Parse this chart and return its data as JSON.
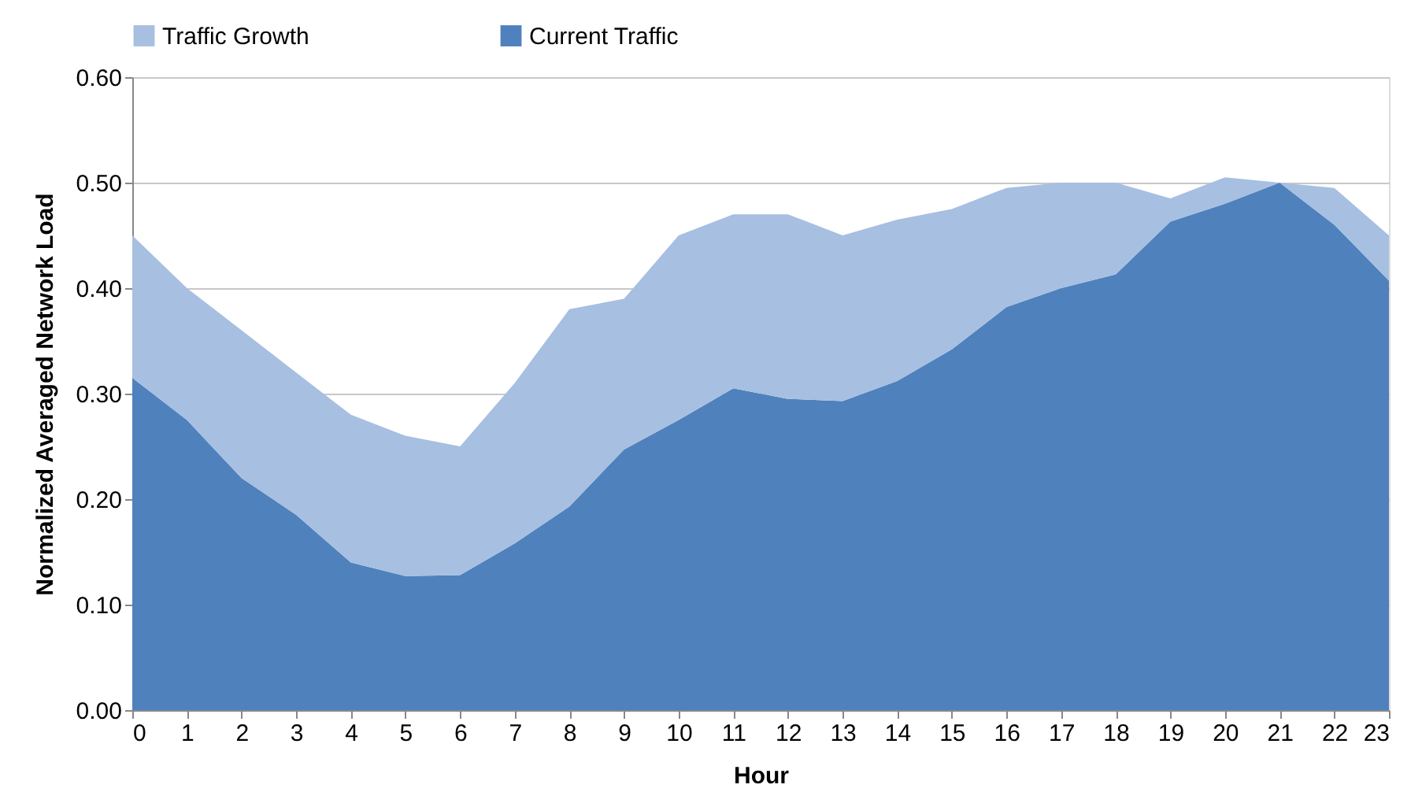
{
  "chart_data": {
    "type": "area",
    "stacked": true,
    "xlabel": "Hour",
    "ylabel": "Normalized Averaged Network Load",
    "x": [
      0,
      1,
      2,
      3,
      4,
      5,
      6,
      7,
      8,
      9,
      10,
      11,
      12,
      13,
      14,
      15,
      16,
      17,
      18,
      19,
      20,
      21,
      22,
      23
    ],
    "series": [
      {
        "name": "Current Traffic",
        "color": "#4f81bd",
        "values": [
          0.315,
          0.275,
          0.22,
          0.185,
          0.14,
          0.127,
          0.128,
          0.158,
          0.193,
          0.247,
          0.275,
          0.305,
          0.295,
          0.293,
          0.312,
          0.342,
          0.382,
          0.4,
          0.413,
          0.463,
          0.48,
          0.5,
          0.46,
          0.407
        ]
      },
      {
        "name": "Traffic Growth",
        "color": "#a7bfe0",
        "values": [
          0.135,
          0.125,
          0.14,
          0.135,
          0.14,
          0.133,
          0.122,
          0.152,
          0.187,
          0.143,
          0.175,
          0.165,
          0.175,
          0.157,
          0.153,
          0.133,
          0.113,
          0.1,
          0.087,
          0.022,
          0.025,
          0.0,
          0.035,
          0.043
        ]
      }
    ],
    "xlim": [
      0,
      23
    ],
    "xticks": [
      0,
      1,
      2,
      3,
      4,
      5,
      6,
      7,
      8,
      9,
      10,
      11,
      12,
      13,
      14,
      15,
      16,
      17,
      18,
      19,
      20,
      21,
      22,
      23
    ],
    "ylim": [
      0,
      0.6
    ],
    "yticks": [
      {
        "value": 0,
        "label": "0.00"
      },
      {
        "value": 0.1,
        "label": "0.10"
      },
      {
        "value": 0.2,
        "label": "0.20"
      },
      {
        "value": 0.3,
        "label": "0.30"
      },
      {
        "value": 0.4,
        "label": "0.40"
      },
      {
        "value": 0.5,
        "label": "0.50"
      },
      {
        "value": 0.6,
        "label": "0.60"
      }
    ],
    "grid": "y",
    "legend": "top"
  }
}
